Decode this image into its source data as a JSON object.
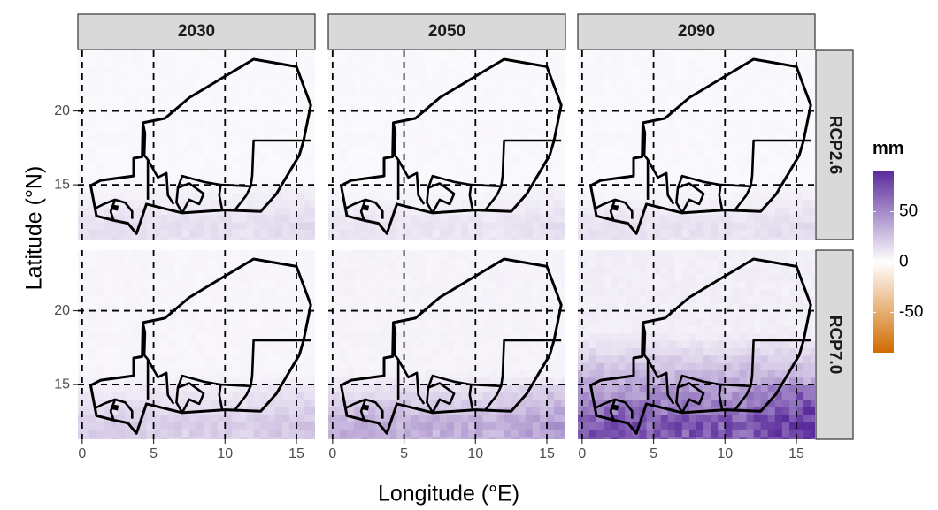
{
  "chart_data": {
    "type": "heatmap",
    "xlabel": "Longitude (°E)",
    "ylabel": "Latitude (°N)",
    "x_ticks": [
      0,
      5,
      10,
      15
    ],
    "x_tick_labels": [
      "0",
      "5",
      "10",
      "15"
    ],
    "y_ticks": [
      15,
      20
    ],
    "y_tick_labels": [
      "15",
      "20"
    ],
    "xlim": [
      -0.3,
      16.3
    ],
    "ylim": [
      11.3,
      24.1
    ],
    "grid": true,
    "columns": [
      "2030",
      "2050",
      "2090"
    ],
    "rows": [
      "RCP2.6",
      "RCP7.0"
    ],
    "legend": {
      "title": "mm",
      "ticks": [
        50,
        0,
        -50
      ],
      "tick_labels": [
        "50",
        "0",
        "-50"
      ],
      "range": [
        -90,
        90
      ],
      "low_color": "#d16b00",
      "mid_color": "#ffffff",
      "high_color": "#5b2c9c",
      "placement": "right"
    },
    "grid_cells": {
      "lon_step": 0.5,
      "lat_step": 0.5,
      "note_units": "mm"
    },
    "panels": [
      {
        "year": "2030",
        "scenario": "RCP2.6",
        "base": 3,
        "south_max": 10,
        "band_top": 15.5,
        "east_boost": 3
      },
      {
        "year": "2050",
        "scenario": "RCP2.6",
        "base": 3,
        "south_max": 8,
        "band_top": 15.0,
        "east_boost": 3
      },
      {
        "year": "2090",
        "scenario": "RCP2.6",
        "base": 3,
        "south_max": 9,
        "band_top": 15.0,
        "east_boost": 3
      },
      {
        "year": "2030",
        "scenario": "RCP7.0",
        "base": 4,
        "south_max": 16,
        "band_top": 16.0,
        "east_boost": 5
      },
      {
        "year": "2050",
        "scenario": "RCP7.0",
        "base": 5,
        "south_max": 28,
        "band_top": 16.0,
        "east_boost": 10
      },
      {
        "year": "2090",
        "scenario": "RCP7.0",
        "base": 7,
        "south_max": 62,
        "band_top": 18.5,
        "east_boost": 22
      }
    ],
    "outline_lonlat": {
      "niger": [
        [
          0.6,
          14.95
        ],
        [
          1.3,
          15.3
        ],
        [
          3.6,
          15.6
        ],
        [
          3.6,
          16.8
        ],
        [
          4.2,
          16.9
        ],
        [
          4.25,
          19.2
        ],
        [
          5.8,
          19.5
        ],
        [
          7.5,
          20.9
        ],
        [
          12.0,
          23.5
        ],
        [
          15.0,
          23.0
        ],
        [
          16.0,
          20.4
        ],
        [
          15.5,
          18.0
        ],
        [
          15.2,
          17.0
        ],
        [
          13.6,
          14.4
        ],
        [
          12.5,
          13.2
        ],
        [
          10.0,
          13.3
        ],
        [
          7.0,
          13.1
        ],
        [
          4.5,
          13.7
        ],
        [
          3.8,
          11.7
        ],
        [
          3.2,
          12.4
        ],
        [
          2.2,
          12.6
        ],
        [
          1.0,
          12.9
        ],
        [
          0.9,
          13.4
        ],
        [
          0.6,
          14.95
        ]
      ],
      "regions": [
        [
          [
            4.25,
            19.2
          ],
          [
            4.4,
            18.5
          ],
          [
            4.35,
            17.0
          ],
          [
            4.6,
            16.7
          ],
          [
            4.6,
            14.0
          ]
        ],
        [
          [
            4.6,
            16.7
          ],
          [
            5.3,
            15.5
          ],
          [
            5.9,
            15.8
          ],
          [
            6.0,
            14.3
          ],
          [
            6.4,
            13.7
          ]
        ],
        [
          [
            7.0,
            13.1
          ],
          [
            6.6,
            13.8
          ],
          [
            6.7,
            14.8
          ],
          [
            7.5,
            15.1
          ],
          [
            8.5,
            14.4
          ],
          [
            8.2,
            13.7
          ],
          [
            7.5,
            14.0
          ],
          [
            7.0,
            13.1
          ]
        ],
        [
          [
            6.7,
            14.8
          ],
          [
            7.0,
            15.6
          ],
          [
            8.5,
            15.2
          ],
          [
            9.7,
            15.0
          ],
          [
            11.8,
            14.9
          ],
          [
            11.9,
            15.6
          ],
          [
            12.0,
            18.0
          ],
          [
            16.0,
            18.0
          ]
        ],
        [
          [
            9.7,
            15.0
          ],
          [
            9.6,
            14.3
          ],
          [
            9.8,
            13.3
          ]
        ],
        [
          [
            11.8,
            14.9
          ],
          [
            11.5,
            14.3
          ],
          [
            10.7,
            13.3
          ]
        ],
        [
          [
            0.9,
            13.4
          ],
          [
            1.5,
            13.7
          ],
          [
            2.3,
            14.0
          ],
          [
            3.0,
            13.8
          ],
          [
            3.5,
            13.2
          ],
          [
            3.5,
            12.7
          ]
        ],
        [
          [
            2.3,
            14.0
          ],
          [
            2.0,
            13.2
          ],
          [
            2.2,
            12.6
          ]
        ]
      ],
      "lake": [
        [
          2.15,
          13.35
        ],
        [
          2.45,
          13.3
        ],
        [
          2.5,
          13.55
        ],
        [
          2.2,
          13.6
        ],
        [
          2.15,
          13.35
        ]
      ]
    }
  }
}
